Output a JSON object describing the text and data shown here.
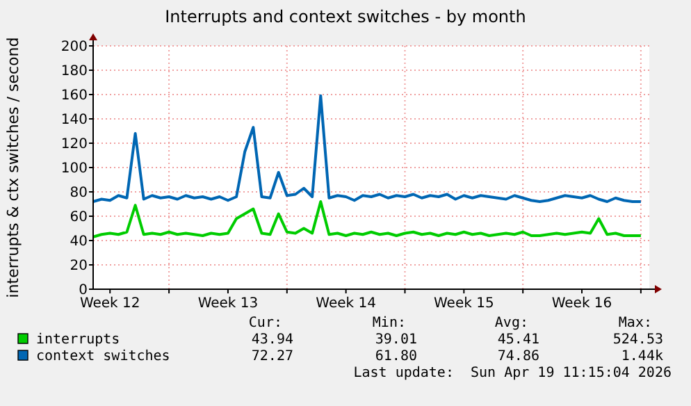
{
  "chart_data": {
    "type": "line",
    "title": "Interrupts and context switches - by month",
    "ylabel": "interrupts & ctx switches / second",
    "x": [
      "2026-03-17T12:00",
      "2026-03-18T00:00",
      "2026-03-18T12:00",
      "2026-03-19T00:00",
      "2026-03-19T12:00",
      "2026-03-20T00:00",
      "2026-03-20T12:00",
      "2026-03-21T00:00",
      "2026-03-21T12:00",
      "2026-03-22T00:00",
      "2026-03-22T12:00",
      "2026-03-23T00:00",
      "2026-03-23T12:00",
      "2026-03-24T00:00",
      "2026-03-24T12:00",
      "2026-03-25T00:00",
      "2026-03-25T12:00",
      "2026-03-26T00:00",
      "2026-03-26T12:00",
      "2026-03-27T00:00",
      "2026-03-27T12:00",
      "2026-03-28T00:00",
      "2026-03-28T12:00",
      "2026-03-29T00:00",
      "2026-03-29T12:00",
      "2026-03-30T00:00",
      "2026-03-30T12:00",
      "2026-03-31T00:00",
      "2026-03-31T12:00",
      "2026-04-01T00:00",
      "2026-04-01T12:00",
      "2026-04-02T00:00",
      "2026-04-02T12:00",
      "2026-04-03T00:00",
      "2026-04-03T12:00",
      "2026-04-04T00:00",
      "2026-04-04T12:00",
      "2026-04-05T00:00",
      "2026-04-05T12:00",
      "2026-04-06T00:00",
      "2026-04-06T12:00",
      "2026-04-07T00:00",
      "2026-04-07T12:00",
      "2026-04-08T00:00",
      "2026-04-08T12:00",
      "2026-04-09T00:00",
      "2026-04-09T12:00",
      "2026-04-10T00:00",
      "2026-04-10T12:00",
      "2026-04-11T00:00",
      "2026-04-11T12:00",
      "2026-04-12T00:00",
      "2026-04-12T12:00",
      "2026-04-13T00:00",
      "2026-04-13T12:00",
      "2026-04-14T00:00",
      "2026-04-14T12:00",
      "2026-04-15T00:00",
      "2026-04-15T12:00",
      "2026-04-16T00:00",
      "2026-04-16T12:00",
      "2026-04-17T00:00",
      "2026-04-17T12:00",
      "2026-04-18T00:00",
      "2026-04-18T12:00",
      "2026-04-19T00:00"
    ],
    "series": [
      {
        "name": "interrupts",
        "color": "#00cc00",
        "values": [
          43,
          45,
          46,
          45,
          47,
          69,
          45,
          46,
          45,
          47,
          45,
          46,
          45,
          44,
          46,
          45,
          46,
          58,
          62,
          66,
          46,
          45,
          62,
          47,
          46,
          50,
          46,
          72,
          45,
          46,
          44,
          46,
          45,
          47,
          45,
          46,
          44,
          46,
          47,
          45,
          46,
          44,
          46,
          45,
          47,
          45,
          46,
          44,
          45,
          46,
          45,
          47,
          44,
          44,
          45,
          46,
          45,
          46,
          47,
          46,
          58,
          45,
          46,
          44,
          44,
          44
        ]
      },
      {
        "name": "context switches",
        "color": "#0066b3",
        "values": [
          72,
          74,
          73,
          77,
          75,
          128,
          74,
          77,
          75,
          76,
          74,
          77,
          75,
          76,
          74,
          76,
          73,
          76,
          113,
          133,
          76,
          75,
          96,
          77,
          78,
          83,
          76,
          159,
          75,
          77,
          76,
          73,
          77,
          76,
          78,
          75,
          77,
          76,
          78,
          75,
          77,
          76,
          78,
          74,
          77,
          75,
          77,
          76,
          75,
          74,
          77,
          75,
          73,
          72,
          73,
          75,
          77,
          76,
          75,
          77,
          74,
          72,
          75,
          73,
          72,
          72
        ]
      }
    ],
    "xlim": [
      "2026-03-17T12:00",
      "2026-04-19T12:00"
    ],
    "xticks": [
      {
        "value": "2026-03-18T12:00",
        "label": "Week 12"
      },
      {
        "value": "2026-03-22T00:00",
        "label": null
      },
      {
        "value": "2026-03-25T12:00",
        "label": "Week 13"
      },
      {
        "value": "2026-03-29T00:00",
        "label": null
      },
      {
        "value": "2026-04-01T12:00",
        "label": "Week 14"
      },
      {
        "value": "2026-04-05T00:00",
        "label": null
      },
      {
        "value": "2026-04-08T12:00",
        "label": "Week 15"
      },
      {
        "value": "2026-04-12T00:00",
        "label": null
      },
      {
        "value": "2026-04-15T12:00",
        "label": "Week 16"
      },
      {
        "value": "2026-04-19T00:00",
        "label": null
      }
    ],
    "ylim": [
      0,
      200
    ],
    "yticks": [
      0,
      20,
      40,
      60,
      80,
      100,
      120,
      140,
      160,
      180,
      200
    ],
    "grid": true,
    "legend": "bottom",
    "line_style": "solid",
    "marker": "none",
    "annotations": [
      "Cur:",
      "Min:",
      "Avg:",
      "Max:",
      "43.94",
      "39.01",
      "45.41",
      "524.53",
      "72.27",
      "61.80",
      "74.86",
      "1.44k",
      "Last update:  Sun Apr 19 11:15:04 2026"
    ]
  }
}
